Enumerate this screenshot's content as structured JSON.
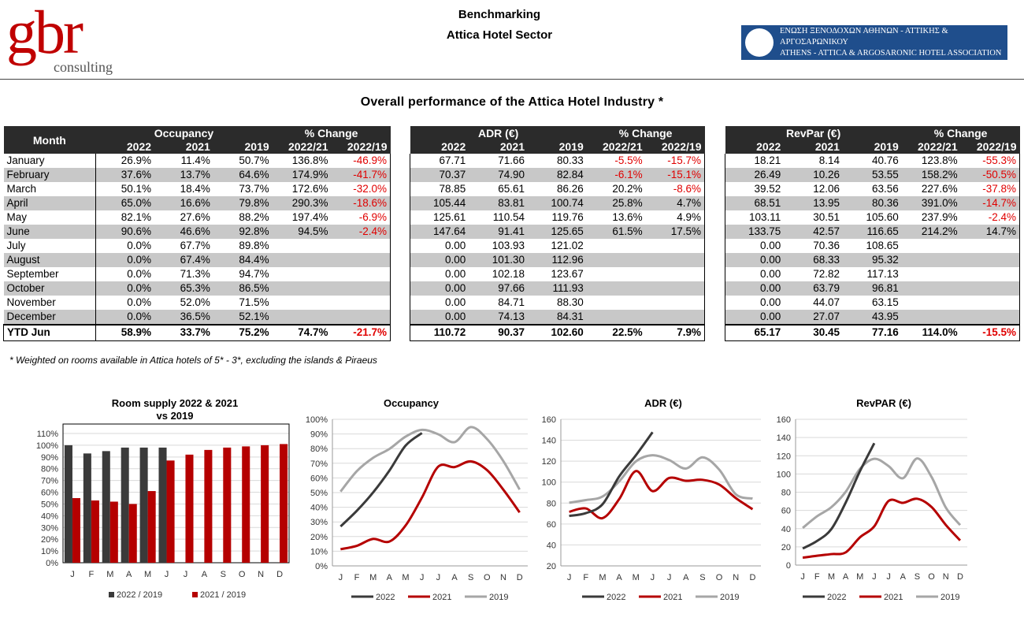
{
  "header": {
    "logo_main": "gbr",
    "logo_sub": "consulting",
    "title_line1": "Benchmarking",
    "title_line2": "Attica Hotel Sector",
    "assoc_line1": "ΕΝΩΣΗ ΞΕΝΟΔΟΧΩΝ ΑΘΗΝΩΝ - ΑΤΤΙΚΗΣ & ΑΡΓΟΣΑΡΩΝΙΚΟΥ",
    "assoc_line2": "ATHENS - ATTICA & ARGOSARONIC HOTEL ASSOCIATION"
  },
  "subtitle": "Overall performance of the Attica Hotel Industry *",
  "footnote": "* Weighted on rooms available in Attica hotels of 5* - 3*, excluding the islands & Piraeus",
  "colors": {
    "series_2022": "#3a3a3a",
    "series_2021": "#b50000",
    "series_2019": "#a6a6a6",
    "negative": "#e00000",
    "header_bg": "#2b2b2b",
    "alt_row": "#c8c8c8"
  },
  "tables": {
    "month_label": "Month",
    "change_label": "% Change",
    "col_labels": [
      "2022",
      "2021",
      "2019",
      "2022/21",
      "2022/19"
    ],
    "titles": {
      "occ": "Occupancy",
      "adr": "ADR (€)",
      "rev": "RevPar (€)"
    },
    "months": [
      "January",
      "February",
      "March",
      "April",
      "May",
      "June",
      "July",
      "August",
      "September",
      "October",
      "November",
      "December"
    ],
    "ytd_label": "YTD Jun",
    "occ": {
      "rows": [
        [
          "26.9%",
          "11.4%",
          "50.7%",
          "136.8%",
          "-46.9%"
        ],
        [
          "37.6%",
          "13.7%",
          "64.6%",
          "174.9%",
          "-41.7%"
        ],
        [
          "50.1%",
          "18.4%",
          "73.7%",
          "172.6%",
          "-32.0%"
        ],
        [
          "65.0%",
          "16.6%",
          "79.8%",
          "290.3%",
          "-18.6%"
        ],
        [
          "82.1%",
          "27.6%",
          "88.2%",
          "197.4%",
          "-6.9%"
        ],
        [
          "90.6%",
          "46.6%",
          "92.8%",
          "94.5%",
          "-2.4%"
        ],
        [
          "0.0%",
          "67.7%",
          "89.8%",
          "",
          ""
        ],
        [
          "0.0%",
          "67.4%",
          "84.4%",
          "",
          ""
        ],
        [
          "0.0%",
          "71.3%",
          "94.7%",
          "",
          ""
        ],
        [
          "0.0%",
          "65.3%",
          "86.5%",
          "",
          ""
        ],
        [
          "0.0%",
          "52.0%",
          "71.5%",
          "",
          ""
        ],
        [
          "0.0%",
          "36.5%",
          "52.1%",
          "",
          ""
        ]
      ],
      "ytd": [
        "58.9%",
        "33.7%",
        "75.2%",
        "74.7%",
        "-21.7%"
      ]
    },
    "adr": {
      "rows": [
        [
          "67.71",
          "71.66",
          "80.33",
          "-5.5%",
          "-15.7%"
        ],
        [
          "70.37",
          "74.90",
          "82.84",
          "-6.1%",
          "-15.1%"
        ],
        [
          "78.85",
          "65.61",
          "86.26",
          "20.2%",
          "-8.6%"
        ],
        [
          "105.44",
          "83.81",
          "100.74",
          "25.8%",
          "4.7%"
        ],
        [
          "125.61",
          "110.54",
          "119.76",
          "13.6%",
          "4.9%"
        ],
        [
          "147.64",
          "91.41",
          "125.65",
          "61.5%",
          "17.5%"
        ],
        [
          "0.00",
          "103.93",
          "121.02",
          "",
          ""
        ],
        [
          "0.00",
          "101.30",
          "112.96",
          "",
          ""
        ],
        [
          "0.00",
          "102.18",
          "123.67",
          "",
          ""
        ],
        [
          "0.00",
          "97.66",
          "111.93",
          "",
          ""
        ],
        [
          "0.00",
          "84.71",
          "88.30",
          "",
          ""
        ],
        [
          "0.00",
          "74.13",
          "84.31",
          "",
          ""
        ]
      ],
      "ytd": [
        "110.72",
        "90.37",
        "102.60",
        "22.5%",
        "7.9%"
      ]
    },
    "rev": {
      "rows": [
        [
          "18.21",
          "8.14",
          "40.76",
          "123.8%",
          "-55.3%"
        ],
        [
          "26.49",
          "10.26",
          "53.55",
          "158.2%",
          "-50.5%"
        ],
        [
          "39.52",
          "12.06",
          "63.56",
          "227.6%",
          "-37.8%"
        ],
        [
          "68.51",
          "13.95",
          "80.36",
          "391.0%",
          "-14.7%"
        ],
        [
          "103.11",
          "30.51",
          "105.60",
          "237.9%",
          "-2.4%"
        ],
        [
          "133.75",
          "42.57",
          "116.65",
          "214.2%",
          "14.7%"
        ],
        [
          "0.00",
          "70.36",
          "108.65",
          "",
          ""
        ],
        [
          "0.00",
          "68.33",
          "95.32",
          "",
          ""
        ],
        [
          "0.00",
          "72.82",
          "117.13",
          "",
          ""
        ],
        [
          "0.00",
          "63.79",
          "96.81",
          "",
          ""
        ],
        [
          "0.00",
          "44.07",
          "63.15",
          "",
          ""
        ],
        [
          "0.00",
          "27.07",
          "43.95",
          "",
          ""
        ]
      ],
      "ytd": [
        "65.17",
        "30.45",
        "77.16",
        "114.0%",
        "-15.5%"
      ]
    }
  },
  "chart_data": [
    {
      "type": "bar",
      "title": "Room supply 2022 & 2021\nvs 2019",
      "categories": [
        "J",
        "F",
        "M",
        "A",
        "M",
        "J",
        "J",
        "A",
        "S",
        "O",
        "N",
        "D"
      ],
      "ylim": [
        0,
        110
      ],
      "yticks": [
        "0%",
        "10%",
        "20%",
        "30%",
        "40%",
        "50%",
        "60%",
        "70%",
        "80%",
        "90%",
        "100%",
        "110%"
      ],
      "series": [
        {
          "name": "2022 / 2019",
          "color": "#3a3a3a",
          "values": [
            100,
            93,
            95,
            98,
            98,
            98,
            null,
            null,
            null,
            null,
            null,
            null
          ]
        },
        {
          "name": "2021 / 2019",
          "color": "#b50000",
          "values": [
            55,
            53,
            52,
            50,
            61,
            87,
            92,
            96,
            98,
            99,
            100,
            101
          ]
        }
      ],
      "grid": true,
      "legend": "bottom"
    },
    {
      "type": "line",
      "title": "Occupancy",
      "categories": [
        "J",
        "F",
        "M",
        "A",
        "M",
        "J",
        "J",
        "A",
        "S",
        "O",
        "N",
        "D"
      ],
      "ylim": [
        0,
        100
      ],
      "yticks": [
        "0%",
        "10%",
        "20%",
        "30%",
        "40%",
        "50%",
        "60%",
        "70%",
        "80%",
        "90%",
        "100%"
      ],
      "series": [
        {
          "name": "2022",
          "color": "#3a3a3a",
          "values": [
            26.9,
            37.6,
            50.1,
            65.0,
            82.1,
            90.6,
            null,
            null,
            null,
            null,
            null,
            null
          ]
        },
        {
          "name": "2021",
          "color": "#b50000",
          "values": [
            11.4,
            13.7,
            18.4,
            16.6,
            27.6,
            46.6,
            67.7,
            67.4,
            71.3,
            65.3,
            52.0,
            36.5
          ]
        },
        {
          "name": "2019",
          "color": "#a6a6a6",
          "values": [
            50.7,
            64.6,
            73.7,
            79.8,
            88.2,
            92.8,
            89.8,
            84.4,
            94.7,
            86.5,
            71.5,
            52.1
          ]
        }
      ],
      "grid": true,
      "legend": "bottom"
    },
    {
      "type": "line",
      "title": "ADR (€)",
      "categories": [
        "J",
        "F",
        "M",
        "A",
        "M",
        "J",
        "J",
        "A",
        "S",
        "O",
        "N",
        "D"
      ],
      "ylim": [
        20,
        160
      ],
      "yticks": [
        "20",
        "40",
        "60",
        "80",
        "100",
        "120",
        "140",
        "160"
      ],
      "series": [
        {
          "name": "2022",
          "color": "#3a3a3a",
          "values": [
            67.71,
            70.37,
            78.85,
            105.44,
            125.61,
            147.64,
            null,
            null,
            null,
            null,
            null,
            null
          ]
        },
        {
          "name": "2021",
          "color": "#b50000",
          "values": [
            71.66,
            74.9,
            65.61,
            83.81,
            110.54,
            91.41,
            103.93,
            101.3,
            102.18,
            97.66,
            84.71,
            74.13
          ]
        },
        {
          "name": "2019",
          "color": "#a6a6a6",
          "values": [
            80.33,
            82.84,
            86.26,
            100.74,
            119.76,
            125.65,
            121.02,
            112.96,
            123.67,
            111.93,
            88.3,
            84.31
          ]
        }
      ],
      "grid": true,
      "legend": "bottom"
    },
    {
      "type": "line",
      "title": "RevPAR (€)",
      "categories": [
        "J",
        "F",
        "M",
        "A",
        "M",
        "J",
        "J",
        "A",
        "S",
        "O",
        "N",
        "D"
      ],
      "ylim": [
        0,
        160
      ],
      "yticks": [
        "0",
        "20",
        "40",
        "60",
        "80",
        "100",
        "120",
        "140",
        "160"
      ],
      "series": [
        {
          "name": "2022",
          "color": "#3a3a3a",
          "values": [
            18.21,
            26.49,
            39.52,
            68.51,
            103.11,
            133.75,
            null,
            null,
            null,
            null,
            null,
            null
          ]
        },
        {
          "name": "2021",
          "color": "#b50000",
          "values": [
            8.14,
            10.26,
            12.06,
            13.95,
            30.51,
            42.57,
            70.36,
            68.33,
            72.82,
            63.79,
            44.07,
            27.07
          ]
        },
        {
          "name": "2019",
          "color": "#a6a6a6",
          "values": [
            40.76,
            53.55,
            63.56,
            80.36,
            105.6,
            116.65,
            108.65,
            95.32,
            117.13,
            96.81,
            63.15,
            43.95
          ]
        }
      ],
      "grid": true,
      "legend": "bottom"
    }
  ]
}
